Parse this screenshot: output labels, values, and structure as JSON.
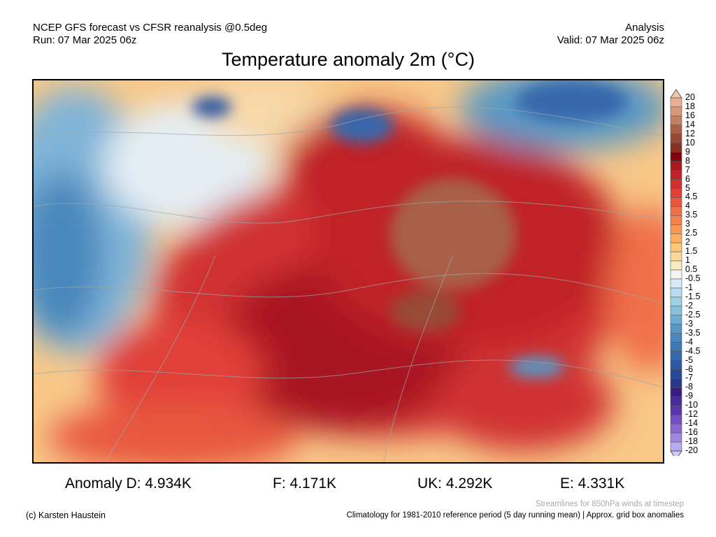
{
  "header": {
    "model_line": "NCEP GFS forecast vs CFSR reanalysis @0.5deg",
    "run": "Run: 07 Mar 2025 06z",
    "type": "Analysis",
    "valid": "Valid: 07 Mar 2025 06z"
  },
  "title": "Temperature anomaly 2m (°C)",
  "colorbar": {
    "labels": [
      "20",
      "18",
      "16",
      "14",
      "12",
      "10",
      "9",
      "8",
      "7",
      "6",
      "5",
      "4.5",
      "4",
      "3.5",
      "3",
      "2.5",
      "2",
      "1.5",
      "1",
      "0.5",
      "-0.5",
      "-1",
      "-1.5",
      "-2",
      "-2.5",
      "-3",
      "-3.5",
      "-4",
      "-4.5",
      "-5",
      "-6",
      "-7",
      "-8",
      "-9",
      "-10",
      "-12",
      "-14",
      "-16",
      "-18",
      "-20"
    ],
    "top_triangle": "#f0c8b0",
    "bottom_triangle": "#d0c8f8",
    "bins": [
      "#e8b090",
      "#d8987a",
      "#c48064",
      "#a86048",
      "#984838",
      "#883020",
      "#800010",
      "#a81820",
      "#c02028",
      "#d03030",
      "#e04038",
      "#e85840",
      "#f07048",
      "#f48050",
      "#f89858",
      "#fcb060",
      "#fcc878",
      "#fcd898",
      "#f8ecc0",
      "#f4f4f4",
      "#d8ecf8",
      "#b8dcf0",
      "#a0d0e4",
      "#88c0d8",
      "#70acd0",
      "#5898c4",
      "#4888bc",
      "#4078b4",
      "#3868ac",
      "#3058a0",
      "#284894",
      "#283888",
      "#381c80",
      "#482c98",
      "#5838a8",
      "#7050c0",
      "#8868d0",
      "#a088e0",
      "#b8a8f0"
    ]
  },
  "anomalies": {
    "d": "Anomaly D: 4.934K",
    "f": "F: 4.171K",
    "uk": "UK: 4.292K",
    "e": "E: 4.331K"
  },
  "footer": {
    "copyright": "(c) Karsten Haustein",
    "streamlines": "Streamlines for 850hPa winds at timestep",
    "climatology": "Climatology for 1981-2010 reference period (5 day running mean) | Approx. grid box anomalies"
  }
}
